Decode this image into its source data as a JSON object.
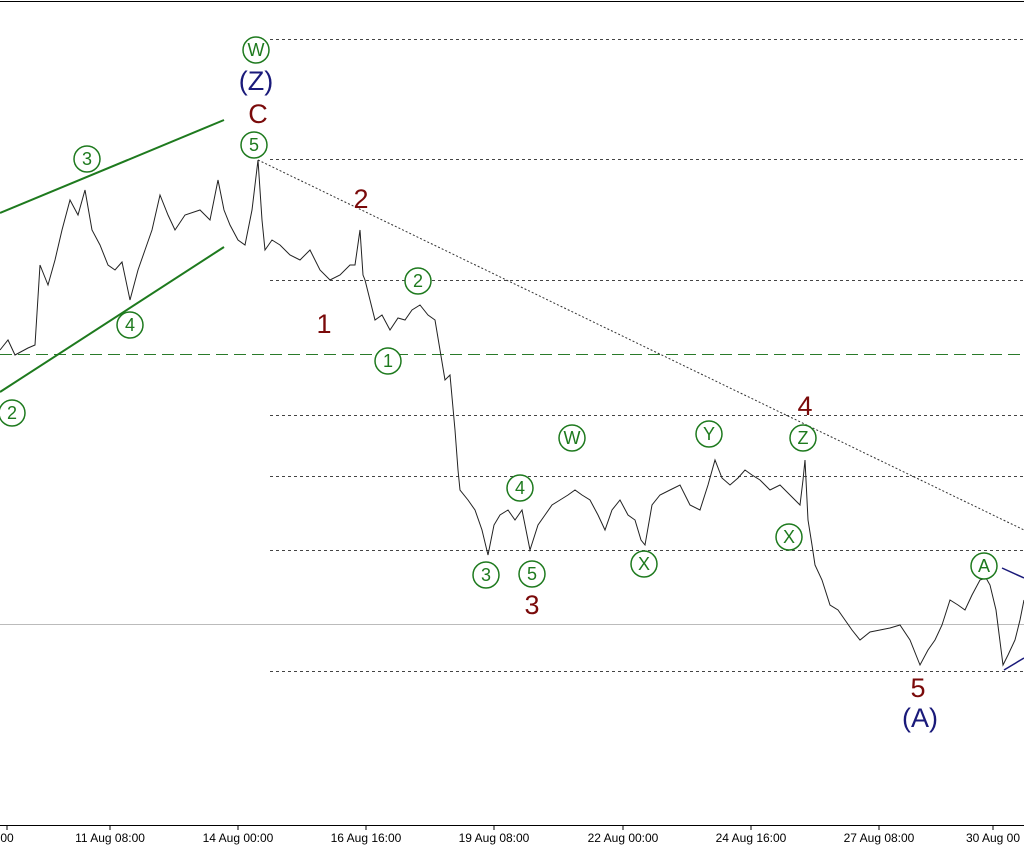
{
  "chart_data": {
    "type": "line",
    "categories": [
      "00",
      "11 Aug 08:00",
      "14 Aug 00:00",
      "16 Aug 16:00",
      "19 Aug 08:00",
      "22 Aug 00:00",
      "24 Aug 16:00",
      "27 Aug 08:00",
      "30 Aug 00"
    ],
    "annotations": [
      {
        "text": "W",
        "color": "#1e7a1e",
        "circled": true
      },
      {
        "text": "(Z)",
        "color": "#1a1a7a",
        "circled": false
      },
      {
        "text": "C",
        "color": "#7a0a0a",
        "circled": false
      },
      {
        "text": "5",
        "color": "#1e7a1e",
        "circled": true
      },
      {
        "text": "3",
        "color": "#1e7a1e",
        "circled": true
      },
      {
        "text": "4",
        "color": "#1e7a1e",
        "circled": true
      },
      {
        "text": "2",
        "color": "#1e7a1e",
        "circled": true
      },
      {
        "text": "2",
        "color": "#7a0a0a",
        "circled": false
      },
      {
        "text": "1",
        "color": "#7a0a0a",
        "circled": false
      },
      {
        "text": "2",
        "color": "#1e7a1e",
        "circled": true
      },
      {
        "text": "1",
        "color": "#1e7a1e",
        "circled": true
      },
      {
        "text": "W",
        "color": "#1e7a1e",
        "circled": true
      },
      {
        "text": "Y",
        "color": "#1e7a1e",
        "circled": true
      },
      {
        "text": "4",
        "color": "#7a0a0a",
        "circled": false
      },
      {
        "text": "Z",
        "color": "#1e7a1e",
        "circled": true
      },
      {
        "text": "4",
        "color": "#1e7a1e",
        "circled": true
      },
      {
        "text": "X",
        "color": "#1e7a1e",
        "circled": true
      },
      {
        "text": "3",
        "color": "#1e7a1e",
        "circled": true
      },
      {
        "text": "5",
        "color": "#1e7a1e",
        "circled": true
      },
      {
        "text": "X",
        "color": "#1e7a1e",
        "circled": true
      },
      {
        "text": "3",
        "color": "#7a0a0a",
        "circled": false
      },
      {
        "text": "A",
        "color": "#1e7a1e",
        "circled": true
      },
      {
        "text": "5",
        "color": "#7a0a0a",
        "circled": false
      },
      {
        "text": "(A)",
        "color": "#1a1a7a",
        "circled": false
      }
    ]
  }
}
